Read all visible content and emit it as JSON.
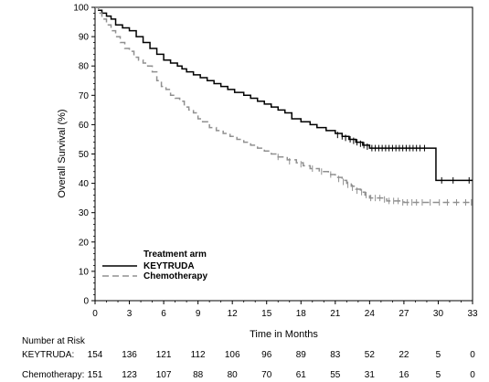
{
  "chart_data": {
    "type": "line",
    "title": "",
    "xlabel": "Time in Months",
    "ylabel": "Overall Survival (%)",
    "xlim": [
      0,
      33
    ],
    "ylim": [
      0,
      100
    ],
    "x_ticks": [
      0,
      3,
      6,
      9,
      12,
      15,
      18,
      21,
      24,
      27,
      30,
      33
    ],
    "y_ticks": [
      0,
      10,
      20,
      30,
      40,
      50,
      60,
      70,
      80,
      90,
      100
    ],
    "grid": false,
    "legend": {
      "title": "Treatment arm",
      "placement": "bottom-left"
    },
    "series": [
      {
        "name": "KEYTRUDA",
        "color": "#000000",
        "dash": "solid",
        "points": [
          [
            0,
            100
          ],
          [
            0.3,
            99
          ],
          [
            0.6,
            98
          ],
          [
            1.0,
            97
          ],
          [
            1.4,
            96
          ],
          [
            1.8,
            94
          ],
          [
            2.4,
            93
          ],
          [
            3.0,
            92
          ],
          [
            3.6,
            90
          ],
          [
            4.2,
            88
          ],
          [
            4.8,
            86
          ],
          [
            5.4,
            84
          ],
          [
            6.0,
            82
          ],
          [
            6.6,
            81
          ],
          [
            7.2,
            80
          ],
          [
            7.6,
            79
          ],
          [
            8.0,
            78
          ],
          [
            8.6,
            77
          ],
          [
            9.2,
            76
          ],
          [
            9.8,
            75
          ],
          [
            10.4,
            74
          ],
          [
            11.0,
            73
          ],
          [
            11.6,
            72
          ],
          [
            12.2,
            71
          ],
          [
            13.0,
            70
          ],
          [
            13.6,
            69
          ],
          [
            14.2,
            68
          ],
          [
            14.8,
            67
          ],
          [
            15.4,
            66
          ],
          [
            16.0,
            65
          ],
          [
            16.6,
            64
          ],
          [
            17.2,
            62
          ],
          [
            18.0,
            61
          ],
          [
            18.8,
            60
          ],
          [
            19.4,
            59
          ],
          [
            20.2,
            58
          ],
          [
            21.0,
            57
          ],
          [
            21.6,
            56
          ],
          [
            22.2,
            55
          ],
          [
            22.8,
            54
          ],
          [
            23.4,
            53
          ],
          [
            24.0,
            52
          ],
          [
            29.8,
            52
          ],
          [
            29.8,
            41
          ],
          [
            33.0,
            41
          ]
        ]
      },
      {
        "name": "Chemotherapy",
        "color": "#909090",
        "dash": "dashed",
        "points": [
          [
            0,
            100
          ],
          [
            0.3,
            98
          ],
          [
            0.6,
            96
          ],
          [
            1.0,
            94
          ],
          [
            1.4,
            92
          ],
          [
            1.8,
            90
          ],
          [
            2.2,
            88
          ],
          [
            2.6,
            86
          ],
          [
            3.0,
            85
          ],
          [
            3.4,
            83
          ],
          [
            3.8,
            82
          ],
          [
            4.2,
            81
          ],
          [
            4.6,
            80
          ],
          [
            5.0,
            78
          ],
          [
            5.4,
            75
          ],
          [
            5.8,
            73
          ],
          [
            6.2,
            72
          ],
          [
            6.6,
            70
          ],
          [
            7.0,
            69
          ],
          [
            7.4,
            68
          ],
          [
            7.8,
            66
          ],
          [
            8.2,
            65
          ],
          [
            8.6,
            64
          ],
          [
            9.0,
            62
          ],
          [
            9.4,
            61
          ],
          [
            10.0,
            59
          ],
          [
            10.6,
            58
          ],
          [
            11.2,
            57
          ],
          [
            11.8,
            56
          ],
          [
            12.4,
            55
          ],
          [
            13.0,
            54
          ],
          [
            13.6,
            53
          ],
          [
            14.2,
            52
          ],
          [
            14.8,
            51
          ],
          [
            15.4,
            50
          ],
          [
            16.0,
            49
          ],
          [
            16.8,
            48
          ],
          [
            17.6,
            47
          ],
          [
            18.2,
            46
          ],
          [
            18.8,
            45
          ],
          [
            19.6,
            44
          ],
          [
            20.4,
            43
          ],
          [
            21.0,
            42
          ],
          [
            21.6,
            41
          ],
          [
            22.0,
            40
          ],
          [
            22.4,
            39
          ],
          [
            22.8,
            38
          ],
          [
            23.2,
            37
          ],
          [
            23.6,
            36
          ],
          [
            24.0,
            35
          ],
          [
            25.5,
            34
          ],
          [
            27.0,
            33.5
          ],
          [
            33.0,
            33.5
          ]
        ]
      }
    ],
    "censor_marks": {
      "KEYTRUDA": [
        [
          21.2,
          56.5
        ],
        [
          21.6,
          56
        ],
        [
          21.9,
          55.5
        ],
        [
          22.3,
          55
        ],
        [
          22.6,
          54.5
        ],
        [
          22.9,
          54
        ],
        [
          23.2,
          53.5
        ],
        [
          23.5,
          53
        ],
        [
          23.8,
          52.5
        ],
        [
          24.2,
          52
        ],
        [
          24.5,
          52
        ],
        [
          24.8,
          52
        ],
        [
          25.1,
          52
        ],
        [
          25.4,
          52
        ],
        [
          25.7,
          52
        ],
        [
          26.0,
          52
        ],
        [
          26.3,
          52
        ],
        [
          26.6,
          52
        ],
        [
          26.9,
          52
        ],
        [
          27.2,
          52
        ],
        [
          27.5,
          52
        ],
        [
          27.8,
          52
        ],
        [
          28.1,
          52
        ],
        [
          28.4,
          52
        ],
        [
          28.8,
          52
        ],
        [
          30.3,
          41
        ],
        [
          31.3,
          41
        ],
        [
          32.7,
          41
        ]
      ],
      "Chemotherapy": [
        [
          16.0,
          49
        ],
        [
          17.0,
          47.5
        ],
        [
          18.0,
          46.5
        ],
        [
          19.0,
          45
        ],
        [
          19.8,
          44
        ],
        [
          20.6,
          43
        ],
        [
          21.3,
          41.5
        ],
        [
          21.7,
          40.5
        ],
        [
          22.1,
          39.5
        ],
        [
          22.5,
          38.5
        ],
        [
          22.9,
          37.5
        ],
        [
          23.3,
          37
        ],
        [
          23.7,
          36
        ],
        [
          24.1,
          35
        ],
        [
          24.5,
          35
        ],
        [
          24.9,
          35
        ],
        [
          25.3,
          34.5
        ],
        [
          25.7,
          34
        ],
        [
          26.1,
          34
        ],
        [
          26.5,
          34
        ],
        [
          26.9,
          33.5
        ],
        [
          27.3,
          33.5
        ],
        [
          27.7,
          33.5
        ],
        [
          28.1,
          33.5
        ],
        [
          28.6,
          33.5
        ],
        [
          29.3,
          33.5
        ],
        [
          30.1,
          33.5
        ],
        [
          30.8,
          33.5
        ],
        [
          31.6,
          33.5
        ],
        [
          32.4,
          33.5
        ],
        [
          32.9,
          33.5
        ]
      ]
    },
    "number_at_risk": {
      "header": "Number at Risk",
      "rows": [
        {
          "label": "KEYTRUDA:",
          "values": [
            "154",
            "136",
            "121",
            "112",
            "106",
            "96",
            "89",
            "83",
            "52",
            "22",
            "5",
            "0"
          ]
        },
        {
          "label": "Chemotherapy:",
          "values": [
            "151",
            "123",
            "107",
            "88",
            "80",
            "70",
            "61",
            "55",
            "31",
            "16",
            "5",
            "0"
          ]
        }
      ]
    }
  }
}
